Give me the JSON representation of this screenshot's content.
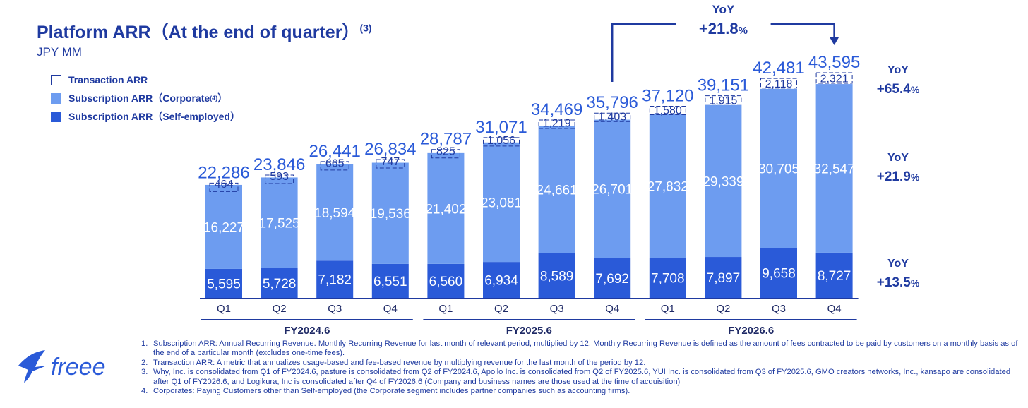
{
  "title": "Platform ARR（At the end of quarter）",
  "title_note": "(3)",
  "unit": "JPY MM",
  "legend": {
    "transaction": "Transaction ARR",
    "corporate": "Subscription ARR（Corporate",
    "corporate_note": "(4)",
    "corporate_close": "）",
    "self": "Subscription ARR（Self-employed）"
  },
  "colors": {
    "brand": "#1f3aa0",
    "corporate": "#6d9cf0",
    "self_employed": "#2a5ad8",
    "transaction": "#ffffff"
  },
  "yoy_total": {
    "label": "YoY",
    "value": "+21.8",
    "unit": "%"
  },
  "yoy_side": [
    {
      "label": "YoY",
      "value": "+65.4",
      "unit": "%"
    },
    {
      "label": "YoY",
      "value": "+21.9",
      "unit": "%"
    },
    {
      "label": "YoY",
      "value": "+13.5",
      "unit": "%"
    }
  ],
  "chart_data": {
    "type": "bar",
    "stacked": true,
    "categories": [
      "Q1",
      "Q2",
      "Q3",
      "Q4",
      "Q1",
      "Q2",
      "Q3",
      "Q4",
      "Q1",
      "Q2",
      "Q3",
      "Q4"
    ],
    "groups": [
      {
        "label": "FY2024.6",
        "count": 4
      },
      {
        "label": "FY2025.6",
        "count": 4
      },
      {
        "label": "FY2026.6",
        "count": 4
      }
    ],
    "series": [
      {
        "name": "Subscription ARR（Self-employed）",
        "values": [
          5595,
          5728,
          7182,
          6551,
          6560,
          6934,
          8589,
          7692,
          7708,
          7897,
          9658,
          8727
        ]
      },
      {
        "name": "Subscription ARR（Corporate）",
        "values": [
          16227,
          17525,
          18594,
          19536,
          21402,
          23081,
          24661,
          26701,
          27832,
          29339,
          30705,
          32547
        ]
      },
      {
        "name": "Transaction ARR",
        "values": [
          464,
          593,
          665,
          747,
          825,
          1056,
          1219,
          1403,
          1580,
          1915,
          2118,
          2321
        ]
      }
    ],
    "totals": [
      22286,
      23846,
      26441,
      26834,
      28787,
      31071,
      34469,
      35796,
      37120,
      39151,
      42481,
      43595
    ],
    "ylim": [
      0,
      43595
    ]
  },
  "footnotes": [
    {
      "num": "1.",
      "text": "Subscription ARR: Annual Recurring Revenue. Monthly Recurring Revenue for last month of relevant period, multiplied by 12. Monthly Recurring Revenue is defined as the amount of fees contracted to be paid by customers on a monthly basis as of the end of a particular month (excludes one-time fees)."
    },
    {
      "num": "2.",
      "text": "Transaction ARR: A metric that annualizes usage-based and fee-based revenue by multiplying revenue for the last month of the period by 12."
    },
    {
      "num": "3.",
      "text": "Why, Inc. is consolidated from Q1 of FY2024.6, pasture is consolidated from Q2 of FY2024.6, Apollo Inc. is consolidated from Q2 of FY2025.6, YUI Inc. is consolidated from Q3 of FY2025.6, GMO creators networks, Inc., kansapo are consolidated after Q1 of FY2026.6, and Logikura, Inc is consolidated after Q4 of FY2026.6 (Company and business names are those used at the time of acquisition)"
    },
    {
      "num": "4.",
      "text": "Corporates: Paying Customers other than Self-employed (the Corporate segment includes partner companies such as accounting firms)."
    }
  ],
  "logo_text": "freee"
}
